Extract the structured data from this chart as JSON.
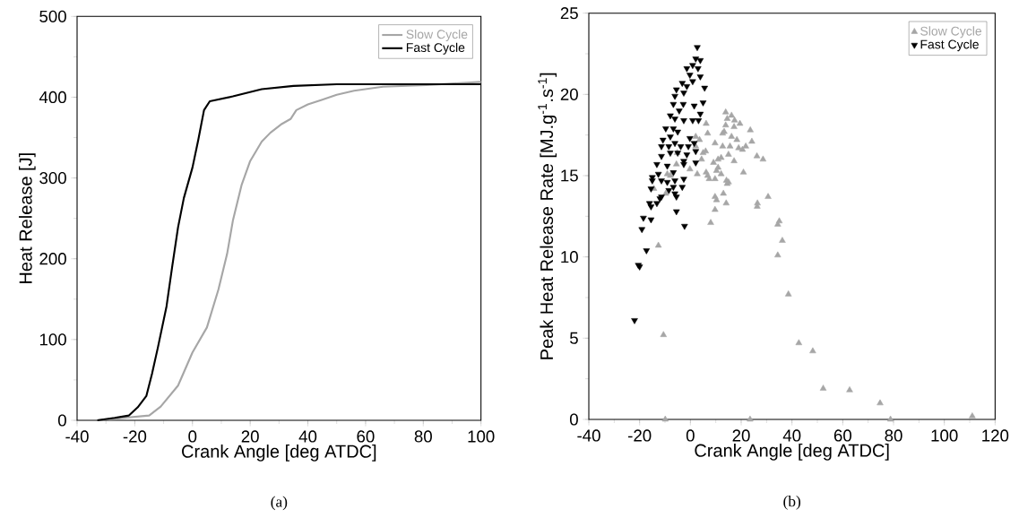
{
  "chart_data": [
    {
      "type": "line",
      "xlabel": "Crank Angle [deg ATDC]",
      "ylabel": "Heat Release [J]",
      "xlim": [
        -40,
        100
      ],
      "ylim": [
        0,
        500
      ],
      "xticks": [
        -40,
        -20,
        0,
        20,
        40,
        60,
        80,
        100
      ],
      "yticks": [
        0,
        100,
        200,
        300,
        400,
        500
      ],
      "legend": "top right",
      "grid": false,
      "annotations": [
        "(a)"
      ],
      "series": [
        {
          "name": "Slow Cycle",
          "color": "#a6a6a6",
          "x": [
            -33,
            -15,
            -11,
            -5,
            0,
            5,
            9,
            12,
            14,
            17,
            20,
            24,
            27,
            31,
            34,
            36,
            40,
            45,
            50,
            56,
            66,
            81,
            100
          ],
          "values": [
            0,
            6,
            17,
            43,
            84,
            115,
            162,
            206,
            247,
            291,
            321,
            345,
            356,
            367,
            373,
            384,
            391,
            397,
            403,
            408,
            413,
            415,
            419
          ]
        },
        {
          "name": "Fast Cycle",
          "color": "#000000",
          "x": [
            -33,
            -27,
            -22,
            -19,
            -16,
            -14,
            -12,
            -9,
            -7,
            -5,
            -3,
            0,
            2,
            4,
            6,
            14,
            24,
            35,
            50,
            100
          ],
          "values": [
            0,
            3,
            6,
            16,
            30,
            58,
            90,
            141,
            191,
            239,
            275,
            313,
            347,
            384,
            395,
            401,
            410,
            414,
            416,
            416
          ]
        }
      ]
    },
    {
      "type": "scatter",
      "xlabel": "Crank Angle [deg ATDC]",
      "ylabel": "Peak Heat Release Rate [MJ.g$^{-1}$.s$^{-1}$]",
      "xlim": [
        -40,
        120
      ],
      "ylim": [
        0,
        25
      ],
      "xticks": [
        -40,
        -20,
        0,
        20,
        40,
        60,
        80,
        100,
        120
      ],
      "yticks": [
        0,
        5,
        10,
        15,
        20,
        25
      ],
      "legend": "top right",
      "grid": false,
      "annotations": [
        "(b)"
      ],
      "series": [
        {
          "name": "Slow Cycle",
          "color": "#a6a6a6",
          "marker": "triangle",
          "x": [
            13.9,
            16.2,
            14.5,
            17.4,
            19.5,
            6.2,
            13.9,
            17.2,
            23.6,
            13.3,
            6.8,
            12.7,
            16.2,
            2.1,
            3.6,
            18.3,
            24.2,
            9.7,
            15.6,
            12.7,
            2.1,
            21.8,
            19.0,
            20.5,
            6.0,
            5.0,
            15.0,
            -5.2,
            26.2,
            28.6,
            4.4,
            12.1,
            10.9,
            17.2,
            9.1,
            -5.5,
            -0.2,
            10.9,
            10.3,
            2.7,
            6.2,
            12.1,
            20.9,
            6.8,
            7.4,
            9.7,
            -9.1,
            -7.9,
            14.2,
            15.0,
            14.5,
            -14.4,
            13.0,
            9.7,
            -9.7,
            10.3,
            30.6,
            26.4,
            14.1,
            26.3,
            9.7,
            8.0,
            35.0,
            34.4,
            -12.6,
            36.2,
            34.4,
            38.6,
            -10.6,
            42.7,
            48.2,
            52.3,
            62.7,
            74.7,
            -9.9,
            23.5,
            78.8,
            111
          ],
          "values": [
            18.9,
            18.7,
            18.5,
            18.4,
            18.2,
            18.2,
            18.1,
            18.0,
            17.8,
            17.7,
            17.6,
            17.6,
            17.4,
            17.4,
            17.2,
            17.2,
            17.1,
            17.0,
            16.8,
            16.8,
            16.8,
            16.8,
            16.7,
            16.6,
            16.5,
            16.4,
            16.3,
            16.4,
            16.2,
            16.0,
            16.0,
            16.1,
            16.0,
            15.9,
            15.8,
            15.7,
            15.4,
            15.5,
            15.3,
            15.1,
            15.2,
            15.1,
            15.2,
            15.0,
            14.8,
            14.8,
            15.1,
            15.0,
            14.7,
            14.6,
            14.5,
            14.2,
            13.9,
            13.7,
            13.9,
            13.5,
            13.7,
            13.3,
            13.3,
            13.1,
            12.9,
            12.1,
            12.2,
            12.0,
            10.7,
            11.0,
            10.1,
            7.7,
            5.2,
            4.7,
            4.2,
            1.9,
            1.8,
            1.0,
            0,
            0,
            0,
            0.2
          ]
        },
        {
          "name": "Fast Cycle",
          "color": "#000000",
          "marker": "triangle-down",
          "x": [
            2.7,
            2.1,
            3.9,
            0.9,
            3.0,
            -1.4,
            -0.2,
            3.9,
            0.9,
            -3.2,
            -1.4,
            5.6,
            -5.5,
            -6.1,
            -2.6,
            -6.7,
            -2.8,
            1.5,
            5.0,
            -4.4,
            -7.9,
            -6.1,
            3.9,
            -2.6,
            0.9,
            3.2,
            -9.7,
            -6.7,
            -7.9,
            -5.0,
            -10.8,
            -0.2,
            -11.4,
            -8.5,
            -6.1,
            -3.8,
            -0.8,
            1.5,
            -7.9,
            -5.0,
            -1.4,
            2.1,
            -11.4,
            -2.6,
            2.1,
            -13.2,
            -9.1,
            -2.6,
            -12.6,
            -6.7,
            -15.0,
            -11.4,
            -9.1,
            -6.1,
            -15.0,
            -2.6,
            -15.5,
            -8.5,
            -6.7,
            -3.2,
            -11.4,
            -6.1,
            -12.0,
            -5.5,
            -16.1,
            -13.2,
            -15.5,
            -5.5,
            -18.5,
            -15.5,
            -19.1,
            -2.3,
            -17.3,
            -20.5,
            -20.0,
            -22.0
          ],
          "values": [
            22.9,
            22.2,
            22.1,
            21.8,
            21.6,
            21.6,
            21.2,
            21.1,
            20.8,
            20.7,
            20.5,
            20.4,
            20.3,
            19.9,
            20.1,
            19.4,
            19.4,
            19.3,
            19.5,
            19.0,
            18.7,
            18.5,
            18.8,
            18.4,
            18.4,
            18.4,
            17.9,
            17.9,
            17.4,
            17.7,
            17.2,
            17.3,
            16.8,
            16.8,
            17.0,
            16.8,
            16.8,
            17.0,
            16.4,
            16.4,
            16.3,
            16.5,
            16.2,
            15.9,
            15.8,
            15.7,
            15.6,
            15.7,
            15.1,
            15.2,
            14.9,
            14.7,
            14.6,
            14.7,
            14.7,
            14.8,
            14.2,
            14.1,
            14.3,
            14.3,
            13.7,
            13.9,
            13.6,
            13.7,
            13.3,
            13.3,
            13.1,
            12.8,
            12.4,
            12.3,
            11.7,
            11.9,
            10.4,
            9.5,
            9.4,
            6.1
          ]
        }
      ]
    }
  ]
}
